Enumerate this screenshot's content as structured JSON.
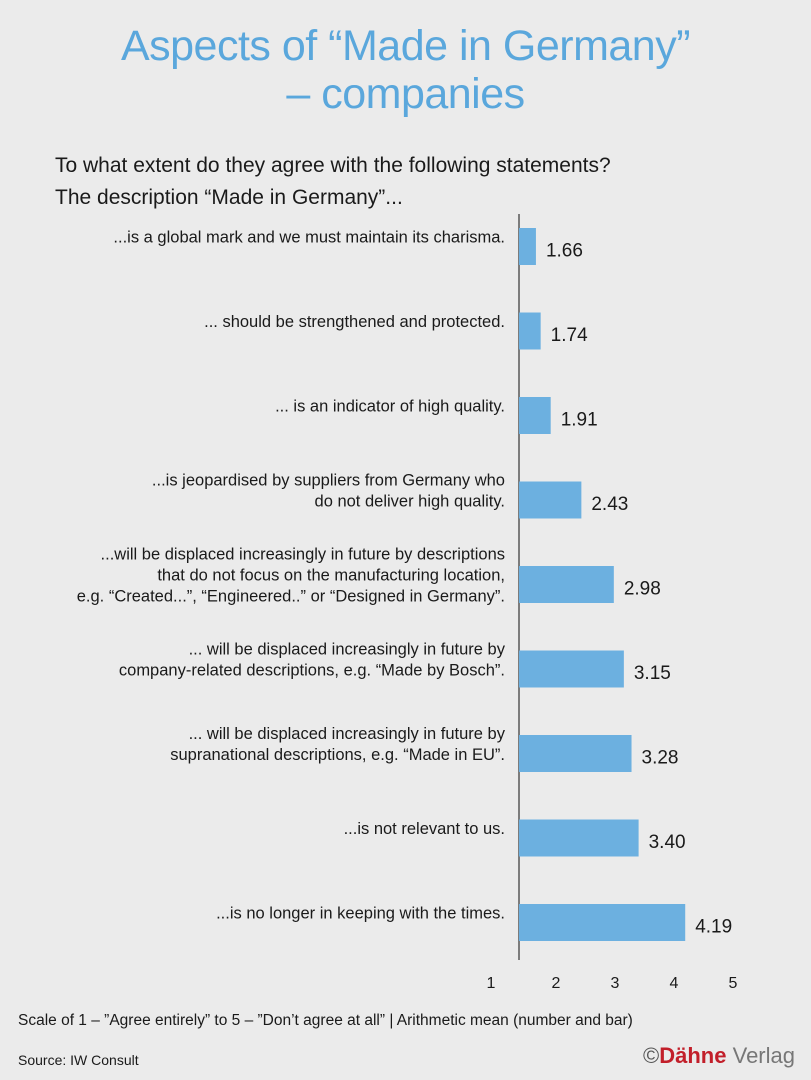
{
  "title_line1": "Aspects of “Made in Germany”",
  "title_line2": "– companies",
  "subtitle_line1": "To what extent do they agree with the following statements?",
  "subtitle_line2": "The description “Made in Germany”...",
  "footnote": "Scale of 1 – ”Agree entirely” to 5 – ”Don’t agree at all”  |  Arithmetic mean (number and bar)",
  "source": "Source: IW Consult",
  "brand": {
    "copyright": "©",
    "name_bold": "Dähne",
    "name_rest": " Verlag"
  },
  "colors": {
    "bar": "#6cb0e0",
    "title": "#5aa7dc",
    "axis": "#333333"
  },
  "chart_data": {
    "type": "bar",
    "orientation": "horizontal",
    "categories": [
      [
        "...is a global mark and we must maintain its charisma."
      ],
      [
        "... should be strengthened and protected."
      ],
      [
        "... is an indicator of high quality."
      ],
      [
        "...is jeopardised by suppliers from Germany who",
        "do not deliver high quality."
      ],
      [
        "...will be displaced increasingly in future by descriptions",
        "that do not focus on the manufacturing location,",
        "e.g. “Created...”, “Engineered..” or “Designed in Germany”."
      ],
      [
        "... will be displaced increasingly in future by",
        "company-related descriptions, e.g. “Made by Bosch”."
      ],
      [
        "... will be displaced increasingly in future by",
        "supranational descriptions, e.g. “Made in EU”."
      ],
      [
        "...is not relevant to us."
      ],
      [
        "...is no longer in keeping with the times."
      ]
    ],
    "values": [
      1.66,
      1.74,
      1.91,
      2.43,
      2.98,
      3.15,
      3.28,
      3.4,
      4.19
    ],
    "value_labels": [
      "1.66",
      "1.74",
      "1.91",
      "2.43",
      "2.98",
      "3.15",
      "3.28",
      "3.40",
      "4.19"
    ],
    "xlim": [
      1,
      5
    ],
    "xticks": [
      "1",
      "2",
      "3",
      "4",
      "5"
    ],
    "xlabel": "",
    "ylabel": ""
  }
}
